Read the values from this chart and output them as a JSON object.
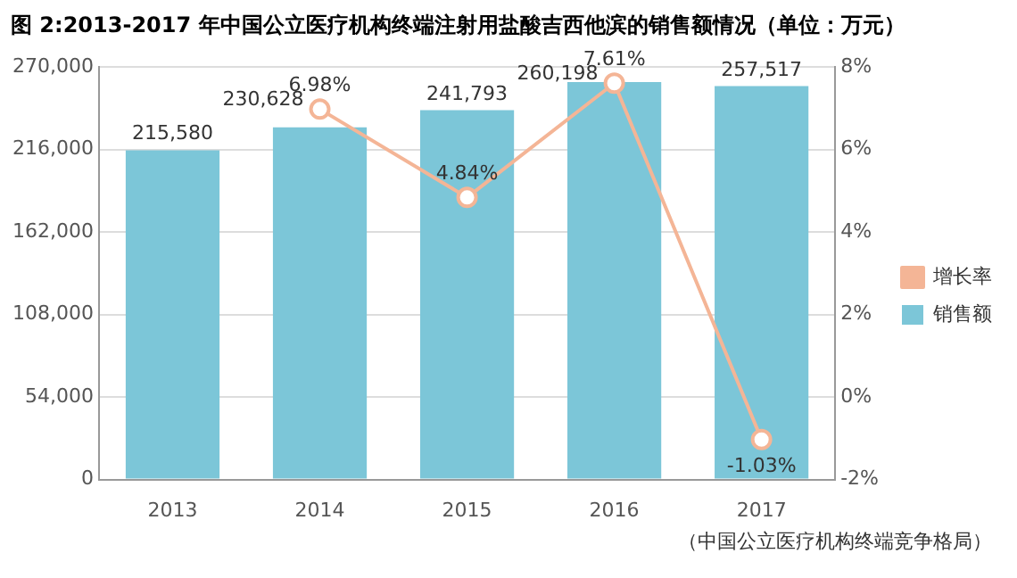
{
  "chart_data": {
    "type": "bar",
    "title": "图 2:2013-2017 年中国公立医疗机构终端注射用盐酸吉西他滨的销售额情况（单位：万元）",
    "categories": [
      "2013",
      "2014",
      "2015",
      "2016",
      "2017"
    ],
    "series": [
      {
        "name": "销售额",
        "color": "#7cc6d8",
        "values": [
          215580,
          230628,
          241793,
          260198,
          257517
        ],
        "value_labels": [
          "215,580",
          "230,628",
          "241,793",
          "260,198",
          "257,517"
        ]
      },
      {
        "name": "增长率",
        "type": "line",
        "axis": "y2",
        "color": "#f4b596",
        "values": [
          null,
          6.98,
          4.84,
          7.61,
          -1.03
        ],
        "value_labels": [
          null,
          "6.98%",
          "4.84%",
          "7.61%",
          "-1.03%"
        ]
      }
    ],
    "ylim": [
      0,
      270000
    ],
    "yticks": [
      0,
      {
        "value": 54000,
        "label": "54,000"
      },
      {
        "value": 108000,
        "label": "108,000"
      },
      {
        "value": 162000,
        "label": "162,000"
      },
      {
        "value": 216000,
        "label": "216,000"
      },
      {
        "value": 270000,
        "label": "270,000"
      }
    ],
    "y2lim": [
      -2,
      8
    ],
    "y2ticks": [
      {
        "value": -2,
        "label": "-2%"
      },
      {
        "value": 0,
        "label": "0%"
      },
      {
        "value": 2,
        "label": "2%"
      },
      {
        "value": 4,
        "label": "4%"
      },
      {
        "value": 6,
        "label": "6%"
      },
      {
        "value": 8,
        "label": "8%"
      }
    ],
    "grid": "y",
    "legend": "right",
    "marker": "circle",
    "annotations": [
      "（中国公立医疗机构终端竞争格局）"
    ]
  }
}
